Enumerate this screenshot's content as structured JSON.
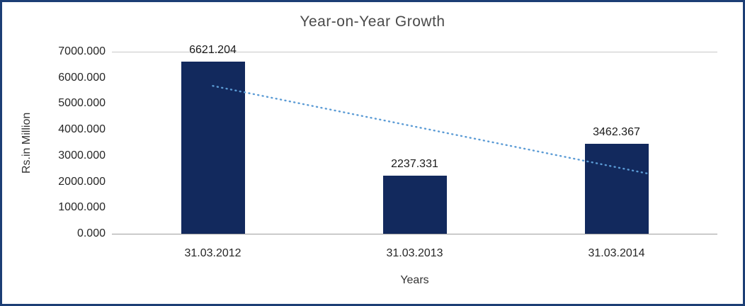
{
  "chart_data": {
    "type": "bar",
    "title": "Year-on-Year Growth",
    "xlabel": "Years",
    "ylabel": "Rs.in Million",
    "categories": [
      "31.03.2012",
      "31.03.2013",
      "31.03.2014"
    ],
    "values": [
      6621.204,
      2237.331,
      3462.367
    ],
    "data_labels": [
      "6621.204",
      "2237.331",
      "3462.367"
    ],
    "ylim": [
      0,
      7000
    ],
    "ytick_step": 1000,
    "ytick_labels": [
      "0.000",
      "1000.000",
      "2000.000",
      "3000.000",
      "4000.000",
      "5000.000",
      "6000.000",
      "7000.000"
    ],
    "grid": false,
    "legend": "none",
    "bar_color": "#12295d",
    "border_color": "#1c3e75",
    "trendline": {
      "start_value": 5686,
      "end_value": 2528,
      "color": "#5b9bd5",
      "style": "dotted"
    }
  }
}
